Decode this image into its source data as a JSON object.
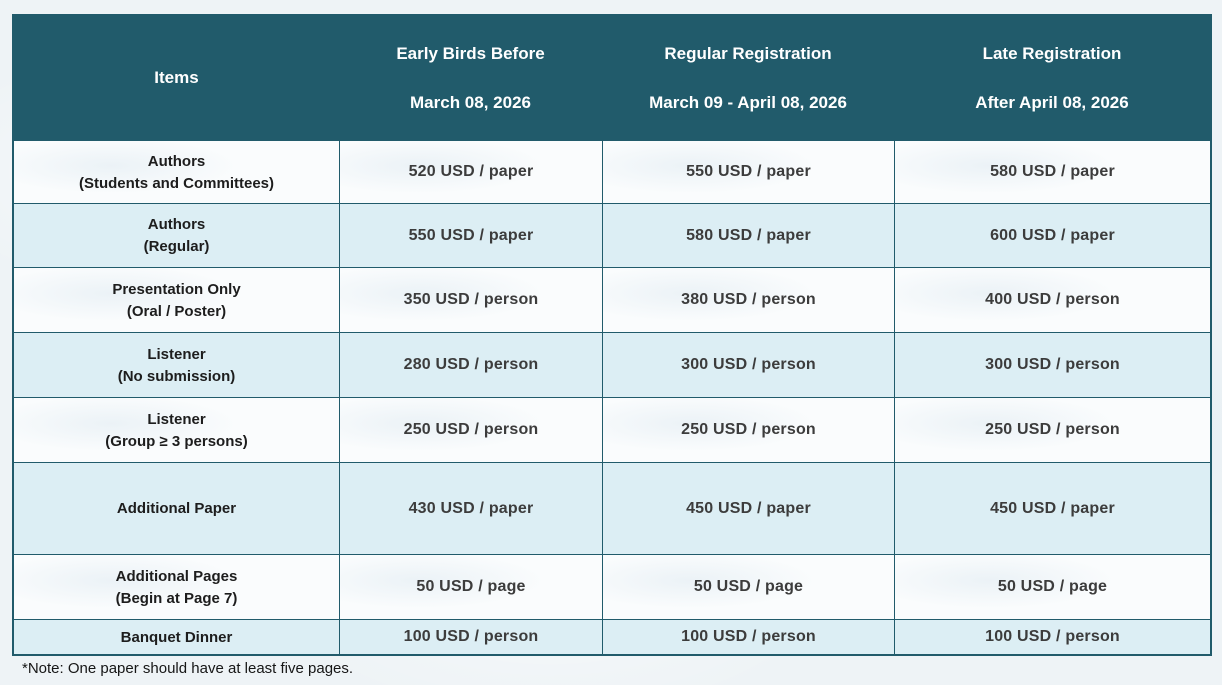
{
  "header": {
    "columns": [
      {
        "label": "Items",
        "sub": ""
      },
      {
        "label": "Early Birds Before",
        "sub": "March 08, 2026"
      },
      {
        "label": "Regular Registration",
        "sub": "March 09 - April 08, 2026"
      },
      {
        "label": "Late Registration",
        "sub": "After April 08, 2026"
      }
    ]
  },
  "rows": [
    {
      "item": "Authors",
      "item_sub": "(Students and Committees)",
      "early": "520 USD / paper",
      "regular": "550 USD / paper",
      "late": "580 USD / paper"
    },
    {
      "item": "Authors",
      "item_sub": "(Regular)",
      "early": "550 USD / paper",
      "regular": "580 USD / paper",
      "late": "600 USD / paper"
    },
    {
      "item": "Presentation Only",
      "item_sub": "(Oral / Poster)",
      "early": "350 USD / person",
      "regular": "380 USD / person",
      "late": "400 USD / person"
    },
    {
      "item": "Listener",
      "item_sub": "(No submission)",
      "early": "280 USD / person",
      "regular": "300 USD / person",
      "late": "300 USD / person"
    },
    {
      "item": "Listener",
      "item_sub": "(Group ≥ 3 persons)",
      "early": "250 USD / person",
      "regular": "250 USD / person",
      "late": "250 USD / person"
    },
    {
      "item": "Additional Paper",
      "item_sub": "",
      "early": "430 USD / paper",
      "regular": "450 USD / paper",
      "late": "450 USD / paper"
    },
    {
      "item": "Additional Pages",
      "item_sub": "(Begin at Page 7)",
      "early": "50 USD / page",
      "regular": "50 USD / page",
      "late": "50 USD / page"
    },
    {
      "item": "Banquet Dinner",
      "item_sub": "",
      "early": "100 USD / person",
      "regular": "100 USD / person",
      "late": "100 USD / person"
    }
  ],
  "note": "*Note: One paper should have at least five pages.",
  "colors": {
    "header_bg": "#215b6b",
    "border": "#215b6b",
    "row_light_bg": "#fafcfd",
    "row_blue_bg": "#dceef4",
    "header_text": "#ffffff",
    "item_text": "#1d1d1d",
    "price_text": "#3c3c3c"
  }
}
